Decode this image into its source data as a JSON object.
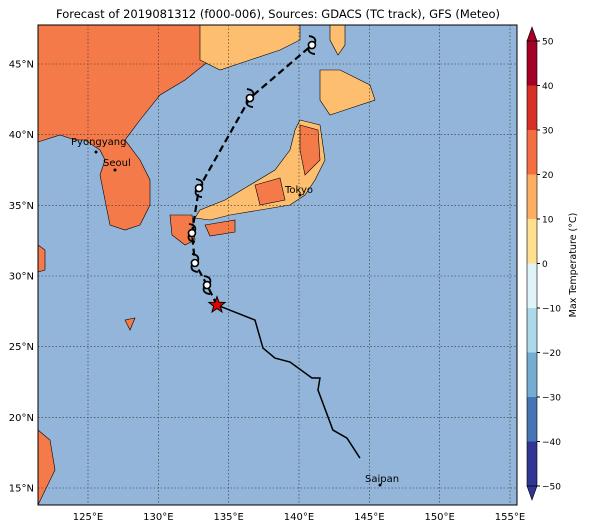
{
  "title": "Forecast of 2019081312 (f000-006), Sources: GDACS (TC track), GFS (Meteo)",
  "map": {
    "lon_ticks": [
      {
        "value": 125,
        "label": "125°E"
      },
      {
        "value": 130,
        "label": "130°E"
      },
      {
        "value": 135,
        "label": "135°E"
      },
      {
        "value": 140,
        "label": "140°E"
      },
      {
        "value": 145,
        "label": "145°E"
      },
      {
        "value": 150,
        "label": "150°E"
      },
      {
        "value": 155,
        "label": "155°E"
      }
    ],
    "lat_ticks": [
      {
        "value": 15,
        "label": "15°N"
      },
      {
        "value": 20,
        "label": "20°N"
      },
      {
        "value": 25,
        "label": "25°N"
      },
      {
        "value": 30,
        "label": "30°N"
      },
      {
        "value": 35,
        "label": "35°N"
      },
      {
        "value": 40,
        "label": "40°N"
      },
      {
        "value": 45,
        "label": "45°N"
      }
    ],
    "cities": [
      "Pyongyang",
      "Seoul",
      "Tokyo",
      "Saipan"
    ],
    "observed_track": {
      "lon": [
        134.17,
        136.87,
        137.44,
        138.29,
        139.36,
        140.92,
        141.49,
        141.35,
        142.41,
        143.41,
        144.33
      ],
      "lat": [
        27.94,
        26.88,
        24.9,
        24.19,
        23.91,
        22.78,
        22.78,
        21.93,
        19.1,
        18.53,
        17.12
      ]
    },
    "forecast_track": {
      "lon": [
        134.17,
        133.46,
        132.6,
        132.39,
        132.89,
        136.51,
        140.92
      ],
      "lat": [
        27.94,
        29.36,
        30.92,
        33.04,
        36.22,
        42.59,
        46.34
      ]
    }
  },
  "colorbar": {
    "label": "Max Temperature (°C)",
    "ticks": [
      50,
      40,
      30,
      20,
      10,
      0,
      {
        "value": -10,
        "label": "−10"
      },
      {
        "value": -20,
        "label": "−20"
      },
      {
        "value": -30,
        "label": "−30"
      },
      {
        "value": -40,
        "label": "−40"
      },
      {
        "value": -50,
        "label": "−50"
      }
    ],
    "colors": [
      "#a50026",
      "#d73027",
      "#f46d43",
      "#fdae61",
      "#fee090",
      "#e0f3f8",
      "#abd9e9",
      "#74add1",
      "#4575b4",
      "#313695"
    ]
  }
}
